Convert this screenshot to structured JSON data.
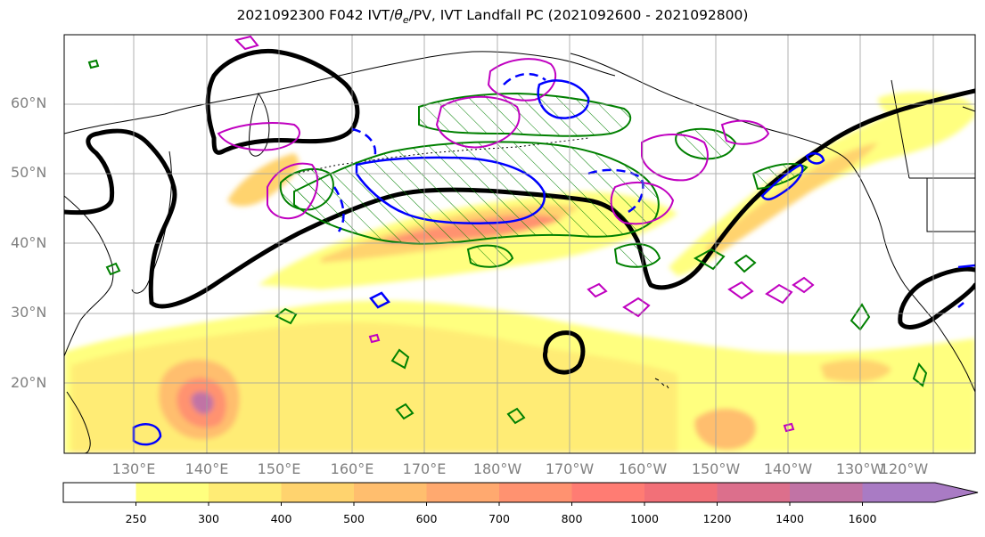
{
  "title": {
    "prefix": "2021092300 F042 IVT/",
    "theta": "θ",
    "theta_sub": "e",
    "suffix": "/PV, IVT Landfall PC (2021092600 - 2021092800)"
  },
  "lat_labels": [
    "60°N",
    "50°N",
    "40°N",
    "30°N",
    "20°N"
  ],
  "lon_labels": [
    "130°E",
    "140°E",
    "150°E",
    "160°E",
    "170°E",
    "180°W",
    "170°W",
    "160°W",
    "150°W",
    "140°W",
    "130°W",
    "120°W"
  ],
  "colorbar": {
    "levels": [
      250,
      300,
      400,
      500,
      600,
      700,
      800,
      1000,
      1200,
      1400,
      1600
    ],
    "labels": [
      "250",
      "300",
      "400",
      "500",
      "600",
      "700",
      "800",
      "1000",
      "1200",
      "1400",
      "1600"
    ],
    "colors": [
      "#ffff7f",
      "#ffec75",
      "#ffd36e",
      "#ffbe6e",
      "#ffa96f",
      "#ff9270",
      "#ff7c73",
      "#f27078",
      "#dc6f8c",
      "#c173a5",
      "#a97bc4"
    ]
  },
  "colors": {
    "pv_contour": "#000000",
    "theta_e_positive": "#008000",
    "theta_e_negative": "#c000c0",
    "ivt_pc_contour": "#0000ff",
    "land_outline": "#000000",
    "gridline": "#a0a0a0"
  }
}
